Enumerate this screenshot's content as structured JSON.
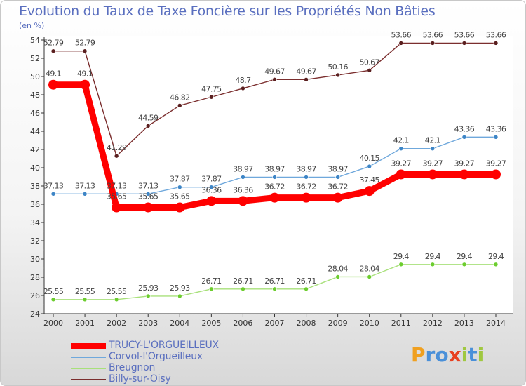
{
  "chart_data": {
    "type": "line",
    "title": "Evolution du Taux de Taxe Foncière sur les Propriétés Non Bâties",
    "subtitle": "(en %)",
    "x": [
      "2000",
      "2001",
      "2002",
      "2003",
      "2004",
      "2005",
      "2006",
      "2007",
      "2008",
      "2009",
      "2010",
      "2011",
      "2012",
      "2013",
      "2014"
    ],
    "ylim": [
      24,
      54
    ],
    "yticks": [
      24,
      26,
      28,
      30,
      32,
      34,
      36,
      38,
      40,
      42,
      44,
      46,
      48,
      50,
      52,
      54
    ],
    "series": [
      {
        "name": "TRUCY-L'ORGUEILLEUX",
        "color": "#ff0000",
        "emphasis": true,
        "values": [
          49.1,
          49.1,
          35.65,
          35.65,
          35.65,
          36.36,
          36.36,
          36.72,
          36.72,
          36.72,
          37.45,
          39.27,
          39.27,
          39.27,
          39.27
        ],
        "labels": [
          "49.1",
          "49.1",
          "35.65",
          "35.65",
          "35.65",
          "36.36",
          "36.36",
          "36.72",
          "36.72",
          "36.72",
          "37.45",
          "39.27",
          "39.27",
          "39.27",
          "39.27"
        ]
      },
      {
        "name": "Corvol-l'Orgueilleux",
        "color": "#6fa8dc",
        "marker": "#3d85c6",
        "values": [
          37.13,
          37.13,
          37.13,
          37.13,
          37.87,
          37.87,
          38.97,
          38.97,
          38.97,
          38.97,
          40.15,
          42.1,
          42.1,
          43.36,
          43.36
        ],
        "labels": [
          "37.13",
          "37.13",
          "37.13",
          "37.13",
          "37.87",
          "37.87",
          "38.97",
          "38.97",
          "38.97",
          "38.97",
          "40.15",
          "42.1",
          "42.1",
          "43.36",
          "43.36"
        ]
      },
      {
        "name": "Breugnon",
        "color": "#a8e07a",
        "marker": "#6ccd2e",
        "values": [
          25.55,
          25.55,
          25.55,
          25.93,
          25.93,
          26.71,
          26.71,
          26.71,
          26.71,
          28.04,
          28.04,
          29.4,
          29.4,
          29.4,
          29.4
        ],
        "labels": [
          "25.55",
          "25.55",
          "25.55",
          "25.93",
          "25.93",
          "26.71",
          "26.71",
          "26.71",
          "26.71",
          "28.04",
          "28.04",
          "29.4",
          "29.4",
          "29.4",
          "29.4"
        ]
      },
      {
        "name": "Billy-sur-Oisy",
        "color": "#7b2e2e",
        "marker": "#5a1f1f",
        "values": [
          52.79,
          52.79,
          41.29,
          44.59,
          46.82,
          47.75,
          48.7,
          49.67,
          49.67,
          50.16,
          50.67,
          53.66,
          53.66,
          53.66,
          53.66
        ],
        "labels": [
          "52.79",
          "52.79",
          "41.29",
          "44.59",
          "46.82",
          "47.75",
          "48.7",
          "49.67",
          "49.67",
          "50.16",
          "50.67",
          "53.66",
          "53.66",
          "53.66",
          "53.66"
        ]
      }
    ]
  },
  "branding": {
    "logo_letters": [
      "P",
      "r",
      "o",
      "x",
      "i",
      "t",
      "i"
    ],
    "logo_colors": [
      "#f0a020",
      "#4a90d9",
      "#4a90d9",
      "#e84020",
      "#a0c840",
      "#4a90d9",
      "#a0c840"
    ]
  }
}
